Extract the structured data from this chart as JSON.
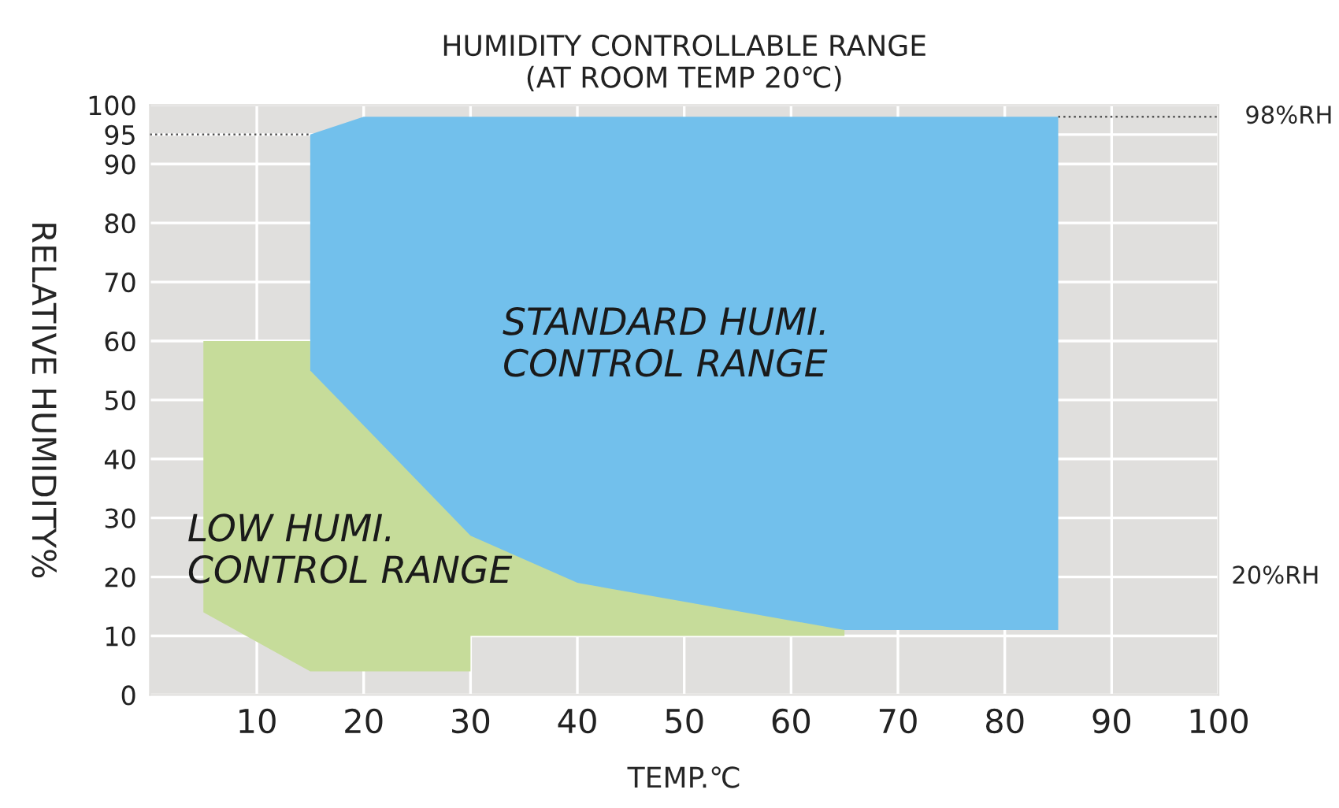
{
  "chart_data": {
    "type": "area",
    "title": "HUMIDITY CONTROLLABLE RANGE\n(AT ROOM TEMP 20℃)",
    "xlabel": "TEMP.℃",
    "ylabel": "RELATIVE HUMIDITY%",
    "series": [
      {
        "name": "LOW HUMI.\nCONTROL RANGE",
        "color": "#c6dc9a",
        "x": [
          5,
          15,
          15,
          65,
          65,
          30,
          30,
          15,
          5
        ],
        "values": [
          60,
          60,
          55,
          11,
          10,
          10,
          4,
          4,
          14
        ]
      },
      {
        "name": "STANDARD HUMI.\nCONTROL RANGE",
        "color": "#72c0ec",
        "x": [
          15,
          20,
          85,
          85,
          65,
          40,
          30,
          15
        ],
        "values": [
          95,
          98,
          98,
          11,
          11,
          19,
          27,
          55
        ]
      },
      {
        "type": "line",
        "line_style": "dotted",
        "color": "#555555",
        "x": [
          0,
          15
        ],
        "values": [
          95,
          95
        ]
      },
      {
        "type": "line",
        "line_style": "dotted",
        "color": "#555555",
        "x": [
          85,
          100
        ],
        "values": [
          98,
          98
        ]
      }
    ],
    "annotations": [
      {
        "text": "98%RH",
        "x": 100,
        "y": 98
      },
      "20%RH"
    ],
    "xlim": [
      0,
      100
    ],
    "ylim": [
      0,
      100
    ],
    "xticks": [
      10,
      20,
      30,
      40,
      50,
      60,
      70,
      80,
      90,
      100
    ],
    "yticks": [
      0,
      10,
      20,
      30,
      40,
      50,
      60,
      70,
      80,
      90,
      95,
      100
    ],
    "grid": true,
    "legend": false
  }
}
